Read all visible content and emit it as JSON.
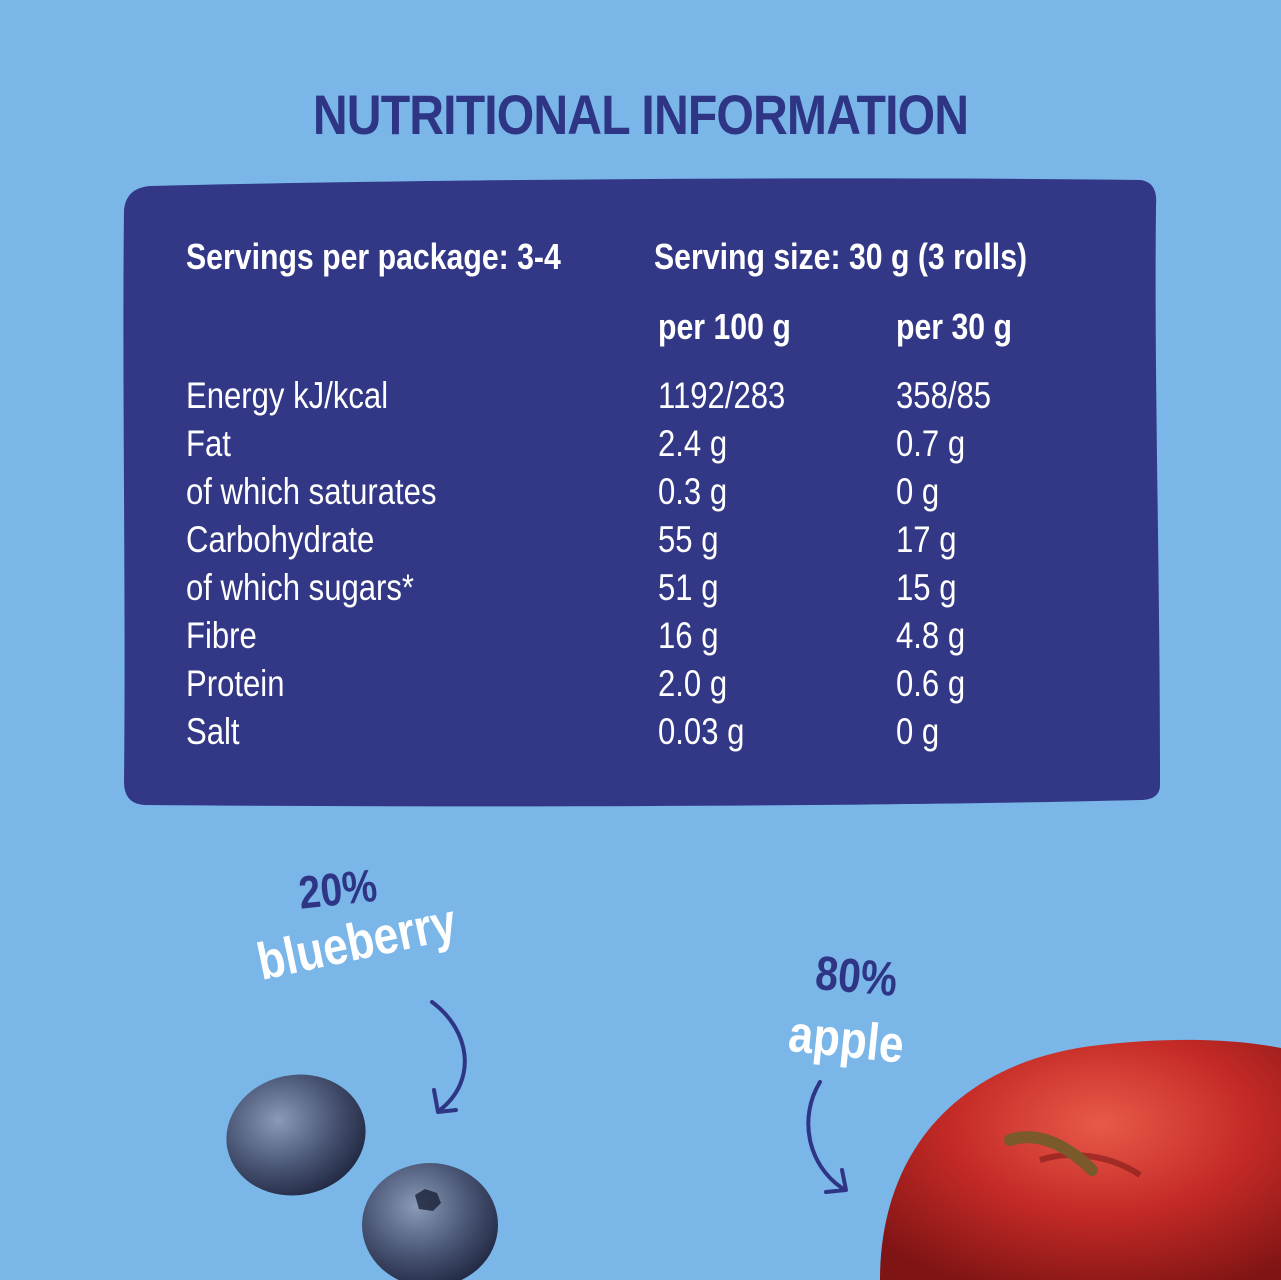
{
  "title": "NUTRITIONAL INFORMATION",
  "colors": {
    "background": "#7ab6e8",
    "panel": "#323786",
    "title": "#2e3585",
    "text": "#ffffff"
  },
  "panel": {
    "servings_per_package": "Servings per package: 3-4",
    "serving_size": "Serving size: 30 g (3 rolls)",
    "col_per100": "per 100 g",
    "col_per30": "per 30 g",
    "rows": [
      {
        "name": "Energy kJ/kcal",
        "per100": "1192/283",
        "per30": "358/85"
      },
      {
        "name": "Fat",
        "per100": "2.4 g",
        "per30": "0.7 g"
      },
      {
        "name": "of which saturates",
        "per100": "0.3 g",
        "per30": "0 g"
      },
      {
        "name": "Carbohydrate",
        "per100": "55 g",
        "per30": "17 g"
      },
      {
        "name": "of which sugars*",
        "per100": "51 g",
        "per30": "15 g"
      },
      {
        "name": "Fibre",
        "per100": "16 g",
        "per30": "4.8 g"
      },
      {
        "name": "Protein",
        "per100": "2.0 g",
        "per30": "0.6 g"
      },
      {
        "name": "Salt",
        "per100": "0.03 g",
        "per30": "0 g"
      }
    ]
  },
  "blueberry": {
    "percent": "20%",
    "name": "blueberry"
  },
  "apple": {
    "percent": "80%",
    "name": "apple"
  }
}
